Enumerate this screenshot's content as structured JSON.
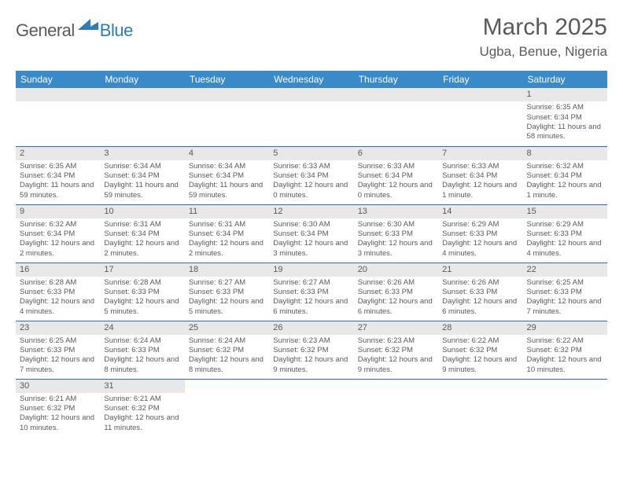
{
  "logo": {
    "part1": "General",
    "part2": "Blue"
  },
  "title": "March 2025",
  "location": "Ugba, Benue, Nigeria",
  "accent_color": "#3a89c9",
  "border_color": "#2b6fa8",
  "daynum_bg": "#e8e8e8",
  "weekdays": [
    "Sunday",
    "Monday",
    "Tuesday",
    "Wednesday",
    "Thursday",
    "Friday",
    "Saturday"
  ],
  "weeks": [
    [
      null,
      null,
      null,
      null,
      null,
      null,
      {
        "n": "1",
        "sr": "6:35 AM",
        "ss": "6:34 PM",
        "dl": "11 hours and 58 minutes."
      }
    ],
    [
      {
        "n": "2",
        "sr": "6:35 AM",
        "ss": "6:34 PM",
        "dl": "11 hours and 59 minutes."
      },
      {
        "n": "3",
        "sr": "6:34 AM",
        "ss": "6:34 PM",
        "dl": "11 hours and 59 minutes."
      },
      {
        "n": "4",
        "sr": "6:34 AM",
        "ss": "6:34 PM",
        "dl": "11 hours and 59 minutes."
      },
      {
        "n": "5",
        "sr": "6:33 AM",
        "ss": "6:34 PM",
        "dl": "12 hours and 0 minutes."
      },
      {
        "n": "6",
        "sr": "6:33 AM",
        "ss": "6:34 PM",
        "dl": "12 hours and 0 minutes."
      },
      {
        "n": "7",
        "sr": "6:33 AM",
        "ss": "6:34 PM",
        "dl": "12 hours and 1 minute."
      },
      {
        "n": "8",
        "sr": "6:32 AM",
        "ss": "6:34 PM",
        "dl": "12 hours and 1 minute."
      }
    ],
    [
      {
        "n": "9",
        "sr": "6:32 AM",
        "ss": "6:34 PM",
        "dl": "12 hours and 2 minutes."
      },
      {
        "n": "10",
        "sr": "6:31 AM",
        "ss": "6:34 PM",
        "dl": "12 hours and 2 minutes."
      },
      {
        "n": "11",
        "sr": "6:31 AM",
        "ss": "6:34 PM",
        "dl": "12 hours and 2 minutes."
      },
      {
        "n": "12",
        "sr": "6:30 AM",
        "ss": "6:34 PM",
        "dl": "12 hours and 3 minutes."
      },
      {
        "n": "13",
        "sr": "6:30 AM",
        "ss": "6:33 PM",
        "dl": "12 hours and 3 minutes."
      },
      {
        "n": "14",
        "sr": "6:29 AM",
        "ss": "6:33 PM",
        "dl": "12 hours and 4 minutes."
      },
      {
        "n": "15",
        "sr": "6:29 AM",
        "ss": "6:33 PM",
        "dl": "12 hours and 4 minutes."
      }
    ],
    [
      {
        "n": "16",
        "sr": "6:28 AM",
        "ss": "6:33 PM",
        "dl": "12 hours and 4 minutes."
      },
      {
        "n": "17",
        "sr": "6:28 AM",
        "ss": "6:33 PM",
        "dl": "12 hours and 5 minutes."
      },
      {
        "n": "18",
        "sr": "6:27 AM",
        "ss": "6:33 PM",
        "dl": "12 hours and 5 minutes."
      },
      {
        "n": "19",
        "sr": "6:27 AM",
        "ss": "6:33 PM",
        "dl": "12 hours and 6 minutes."
      },
      {
        "n": "20",
        "sr": "6:26 AM",
        "ss": "6:33 PM",
        "dl": "12 hours and 6 minutes."
      },
      {
        "n": "21",
        "sr": "6:26 AM",
        "ss": "6:33 PM",
        "dl": "12 hours and 6 minutes."
      },
      {
        "n": "22",
        "sr": "6:25 AM",
        "ss": "6:33 PM",
        "dl": "12 hours and 7 minutes."
      }
    ],
    [
      {
        "n": "23",
        "sr": "6:25 AM",
        "ss": "6:33 PM",
        "dl": "12 hours and 7 minutes."
      },
      {
        "n": "24",
        "sr": "6:24 AM",
        "ss": "6:33 PM",
        "dl": "12 hours and 8 minutes."
      },
      {
        "n": "25",
        "sr": "6:24 AM",
        "ss": "6:32 PM",
        "dl": "12 hours and 8 minutes."
      },
      {
        "n": "26",
        "sr": "6:23 AM",
        "ss": "6:32 PM",
        "dl": "12 hours and 9 minutes."
      },
      {
        "n": "27",
        "sr": "6:23 AM",
        "ss": "6:32 PM",
        "dl": "12 hours and 9 minutes."
      },
      {
        "n": "28",
        "sr": "6:22 AM",
        "ss": "6:32 PM",
        "dl": "12 hours and 9 minutes."
      },
      {
        "n": "29",
        "sr": "6:22 AM",
        "ss": "6:32 PM",
        "dl": "12 hours and 10 minutes."
      }
    ],
    [
      {
        "n": "30",
        "sr": "6:21 AM",
        "ss": "6:32 PM",
        "dl": "12 hours and 10 minutes."
      },
      {
        "n": "31",
        "sr": "6:21 AM",
        "ss": "6:32 PM",
        "dl": "12 hours and 11 minutes."
      },
      null,
      null,
      null,
      null,
      null
    ]
  ],
  "labels": {
    "sunrise": "Sunrise:",
    "sunset": "Sunset:",
    "daylight": "Daylight:"
  }
}
